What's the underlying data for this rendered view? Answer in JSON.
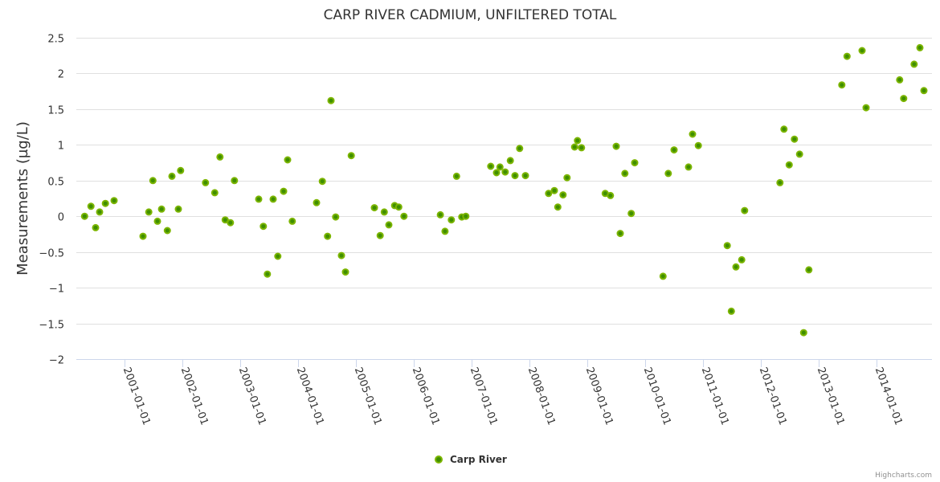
{
  "chart_data": {
    "type": "scatter",
    "title": "CARP RIVER CADMIUM, UNFILTERED TOTAL",
    "xlabel": "",
    "ylabel": "Measurements (µg/L)",
    "ylim": [
      -2,
      2.5
    ],
    "yticks": [
      2.5,
      2,
      1.5,
      1,
      0.5,
      0,
      -0.5,
      -1,
      -1.5,
      -2
    ],
    "ytick_labels": [
      "2.5",
      "2",
      "1.5",
      "1",
      "0.5",
      "0",
      "−0.5",
      "−1",
      "−1.5",
      "−2"
    ],
    "xlim": [
      2000.3,
      2014.95
    ],
    "xticks": [
      2001,
      2002,
      2003,
      2004,
      2005,
      2006,
      2007,
      2008,
      2009,
      2010,
      2011,
      2012,
      2013,
      2014
    ],
    "xtick_labels": [
      "2001-01-01",
      "2002-01-01",
      "2003-01-01",
      "2004-01-01",
      "2005-01-01",
      "2006-01-01",
      "2007-01-01",
      "2008-01-01",
      "2009-01-01",
      "2010-01-01",
      "2011-01-01",
      "2012-01-01",
      "2013-01-01",
      "2014-01-01"
    ],
    "grid": true,
    "legend_position": "bottom-center",
    "series": [
      {
        "name": "Carp River",
        "color": "#7cb500",
        "points": [
          [
            2000.31,
            0.0
          ],
          [
            2000.42,
            0.14
          ],
          [
            2000.5,
            -0.16
          ],
          [
            2000.57,
            0.06
          ],
          [
            2000.67,
            0.18
          ],
          [
            2000.82,
            0.22
          ],
          [
            2001.32,
            -0.28
          ],
          [
            2001.42,
            0.06
          ],
          [
            2001.49,
            0.5
          ],
          [
            2001.57,
            -0.07
          ],
          [
            2001.64,
            0.1
          ],
          [
            2001.74,
            -0.2
          ],
          [
            2001.82,
            0.56
          ],
          [
            2001.93,
            0.1
          ],
          [
            2001.97,
            0.64
          ],
          [
            2002.4,
            0.47
          ],
          [
            2002.56,
            0.33
          ],
          [
            2002.65,
            0.83
          ],
          [
            2002.74,
            -0.05
          ],
          [
            2002.83,
            -0.09
          ],
          [
            2002.9,
            0.5
          ],
          [
            2003.32,
            0.24
          ],
          [
            2003.4,
            -0.14
          ],
          [
            2003.47,
            -0.81
          ],
          [
            2003.57,
            0.24
          ],
          [
            2003.65,
            -0.56
          ],
          [
            2003.75,
            0.35
          ],
          [
            2003.82,
            0.79
          ],
          [
            2003.9,
            -0.07
          ],
          [
            2004.32,
            0.19
          ],
          [
            2004.42,
            0.49
          ],
          [
            2004.51,
            -0.28
          ],
          [
            2004.57,
            1.62
          ],
          [
            2004.65,
            -0.01
          ],
          [
            2004.75,
            -0.55
          ],
          [
            2004.82,
            -0.78
          ],
          [
            2004.92,
            0.85
          ],
          [
            2005.32,
            0.12
          ],
          [
            2005.42,
            -0.27
          ],
          [
            2005.49,
            0.06
          ],
          [
            2005.57,
            -0.12
          ],
          [
            2005.67,
            0.15
          ],
          [
            2005.74,
            0.13
          ],
          [
            2005.83,
            0.0
          ],
          [
            2006.46,
            0.02
          ],
          [
            2006.54,
            -0.21
          ],
          [
            2006.65,
            -0.05
          ],
          [
            2006.74,
            0.56
          ],
          [
            2006.83,
            -0.01
          ],
          [
            2006.9,
            0.0
          ],
          [
            2007.33,
            0.7
          ],
          [
            2007.43,
            0.61
          ],
          [
            2007.49,
            0.69
          ],
          [
            2007.58,
            0.62
          ],
          [
            2007.67,
            0.78
          ],
          [
            2007.75,
            0.57
          ],
          [
            2007.83,
            0.95
          ],
          [
            2007.93,
            0.57
          ],
          [
            2008.33,
            0.32
          ],
          [
            2008.43,
            0.36
          ],
          [
            2008.49,
            0.13
          ],
          [
            2008.58,
            0.3
          ],
          [
            2008.65,
            0.54
          ],
          [
            2008.78,
            0.97
          ],
          [
            2008.83,
            1.06
          ],
          [
            2008.9,
            0.96
          ],
          [
            2009.31,
            0.32
          ],
          [
            2009.4,
            0.29
          ],
          [
            2009.5,
            0.98
          ],
          [
            2009.57,
            -0.24
          ],
          [
            2009.65,
            0.6
          ],
          [
            2009.76,
            0.04
          ],
          [
            2009.82,
            0.75
          ],
          [
            2010.31,
            -0.84
          ],
          [
            2010.4,
            0.6
          ],
          [
            2010.5,
            0.93
          ],
          [
            2010.75,
            0.69
          ],
          [
            2010.82,
            1.15
          ],
          [
            2010.92,
            0.99
          ],
          [
            2011.42,
            -0.41
          ],
          [
            2011.49,
            -1.33
          ],
          [
            2011.57,
            -0.71
          ],
          [
            2011.67,
            -0.61
          ],
          [
            2011.72,
            0.08
          ],
          [
            2012.33,
            0.47
          ],
          [
            2012.4,
            1.22
          ],
          [
            2012.49,
            0.72
          ],
          [
            2012.58,
            1.08
          ],
          [
            2012.67,
            0.87
          ],
          [
            2012.74,
            -1.63
          ],
          [
            2012.83,
            -0.75
          ],
          [
            2013.4,
            1.84
          ],
          [
            2013.49,
            2.24
          ],
          [
            2013.75,
            2.32
          ],
          [
            2013.82,
            1.52
          ],
          [
            2014.4,
            1.91
          ],
          [
            2014.47,
            1.65
          ],
          [
            2014.65,
            2.13
          ],
          [
            2014.75,
            2.36
          ],
          [
            2014.82,
            1.76
          ]
        ]
      }
    ]
  },
  "legend": {
    "label": "Carp River"
  },
  "credits": "Highcharts.com"
}
